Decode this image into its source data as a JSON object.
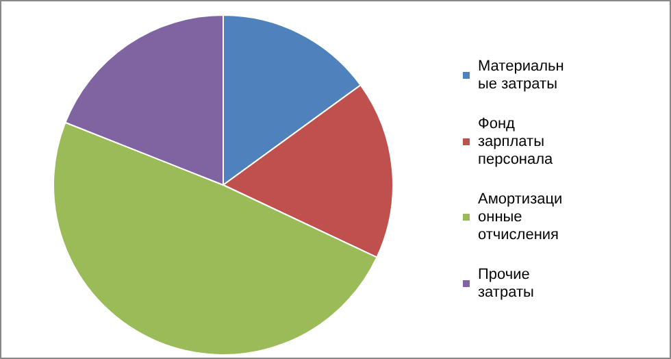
{
  "chart_data": {
    "type": "pie",
    "categories": [
      "Материальные затраты",
      "Фонд зарплаты персонала",
      "Амортизационные отчисления",
      "Прочие затраты"
    ],
    "values": [
      15,
      17,
      49,
      19
    ],
    "colors": [
      "#4f81bd",
      "#c0504d",
      "#9bbb59",
      "#8064a2"
    ],
    "legend": "right"
  }
}
